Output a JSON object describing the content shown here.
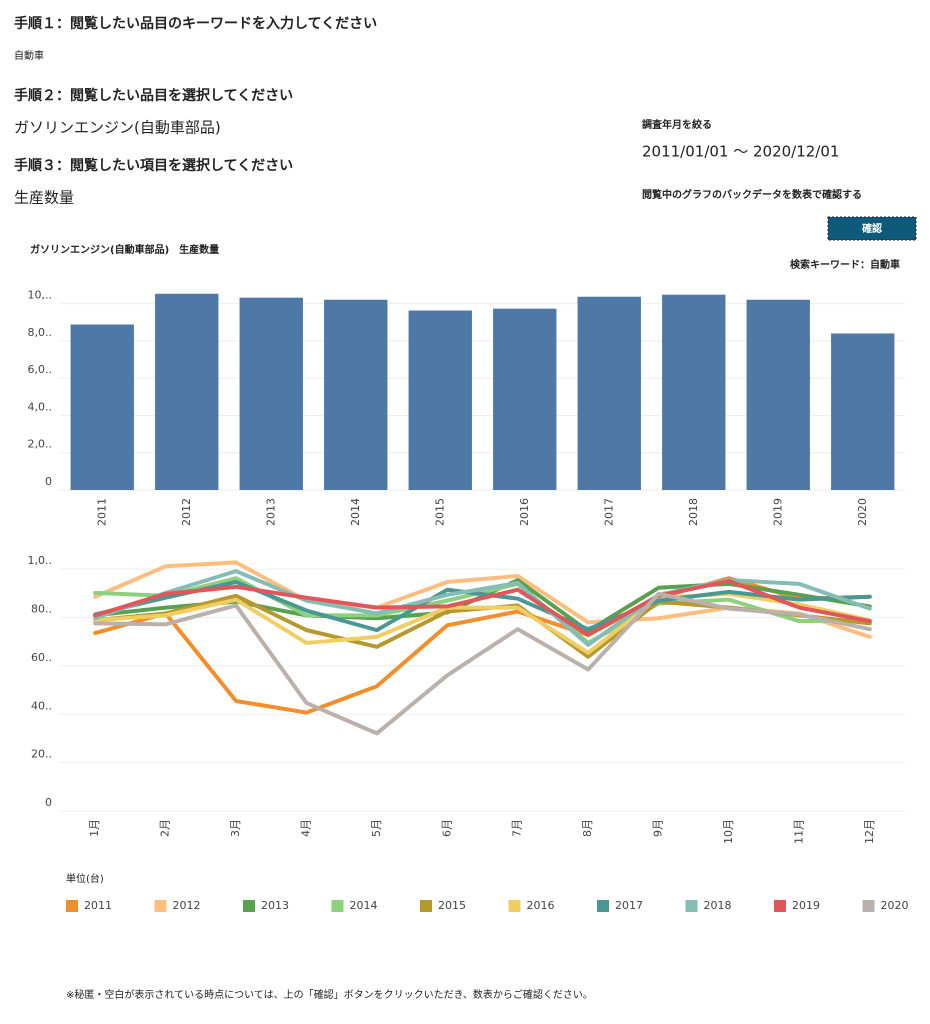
{
  "step1": {
    "title": "手順１：閲覧したい品目のキーワードを入力してください",
    "value": "自動車"
  },
  "step2": {
    "title": "手順２：閲覧したい品目を選択してください",
    "value": "ガソリンエンジン(自動車部品)"
  },
  "step3": {
    "title": "手順３：閲覧したい項目を選択してください",
    "value": "生産数量"
  },
  "period": {
    "label": "調査年月を絞る",
    "value": "2011/01/01 ～ 2020/12/01"
  },
  "check": {
    "label": "閲覧中のグラフのバックデータを数表で確認する",
    "button": "確認"
  },
  "chart_header": {
    "title": "ガソリンエンジン(自動車部品)　生産数量",
    "keyword": "検索キーワード：自動車"
  },
  "unit": "単位(台)",
  "footnote": "※秘匿・空白が表示されている時点については、上の「確認」ボタンをクリックいただき、数表からご確認ください。",
  "chart_data": [
    {
      "type": "bar",
      "color": "#4e79a7",
      "categories": [
        "2011",
        "2012",
        "2013",
        "2014",
        "2015",
        "2016",
        "2017",
        "2018",
        "2019",
        "2020"
      ],
      "values": [
        8880,
        10530,
        10320,
        10210,
        9630,
        9730,
        10370,
        10480,
        10210,
        8400
      ],
      "ylim": [
        0,
        11000
      ],
      "yticks": [
        0,
        {
          "value": 2000,
          "label": "2,0.."
        },
        {
          "value": 4000,
          "label": "4,0.."
        },
        {
          "value": 6000,
          "label": "6,0.."
        },
        {
          "value": 8000,
          "label": "8,0.."
        },
        {
          "value": 10000,
          "label": "10,.."
        }
      ],
      "grid": true
    },
    {
      "type": "line",
      "categories": [
        "1月",
        "2月",
        "3月",
        "4月",
        "5月",
        "6月",
        "7月",
        "8月",
        "9月",
        "10月",
        "11月",
        "12月"
      ],
      "ylim": [
        0,
        1100
      ],
      "yticks": [
        0,
        {
          "value": 200,
          "label": "20.."
        },
        {
          "value": 400,
          "label": "40.."
        },
        {
          "value": 600,
          "label": "60.."
        },
        {
          "value": 800,
          "label": "80.."
        },
        {
          "value": 1000,
          "label": "1,0.."
        }
      ],
      "grid": true,
      "series": [
        {
          "name": "2011",
          "color": "#f28e2b",
          "values": [
            736,
            817,
            455,
            407,
            516,
            768,
            825,
            728,
            882,
            963,
            878,
            886
          ]
        },
        {
          "name": "2012",
          "color": "#ffbe7d",
          "values": [
            886,
            1012,
            1028,
            870,
            841,
            947,
            972,
            780,
            797,
            841,
            817,
            720
          ]
        },
        {
          "name": "2013",
          "color": "#59a14f",
          "values": [
            809,
            841,
            866,
            809,
            797,
            821,
            955,
            744,
            923,
            939,
            894,
            846
          ]
        },
        {
          "name": "2014",
          "color": "#8cd17d",
          "values": [
            902,
            890,
            963,
            809,
            809,
            870,
            939,
            695,
            858,
            874,
            785,
            789
          ]
        },
        {
          "name": "2015",
          "color": "#b6992d",
          "values": [
            789,
            817,
            890,
            748,
            679,
            825,
            850,
            638,
            866,
            841,
            809,
            776
          ]
        },
        {
          "name": "2016",
          "color": "#f1ce63",
          "values": [
            789,
            809,
            874,
            695,
            720,
            841,
            841,
            654,
            882,
            898,
            854,
            789
          ]
        },
        {
          "name": "2017",
          "color": "#499894",
          "values": [
            813,
            882,
            947,
            829,
            748,
            915,
            878,
            752,
            870,
            906,
            874,
            886
          ]
        },
        {
          "name": "2018",
          "color": "#86bcb6",
          "values": [
            797,
            902,
            992,
            870,
            817,
            894,
            943,
            687,
            894,
            955,
            939,
            837
          ]
        },
        {
          "name": "2019",
          "color": "#e15759",
          "values": [
            809,
            898,
            927,
            882,
            841,
            846,
            915,
            728,
            890,
            951,
            841,
            785
          ]
        },
        {
          "name": "2020",
          "color": "#bab0ac",
          "values": [
            776,
            772,
            850,
            447,
            321,
            561,
            752,
            585,
            898,
            837,
            813,
            752
          ]
        }
      ]
    }
  ]
}
